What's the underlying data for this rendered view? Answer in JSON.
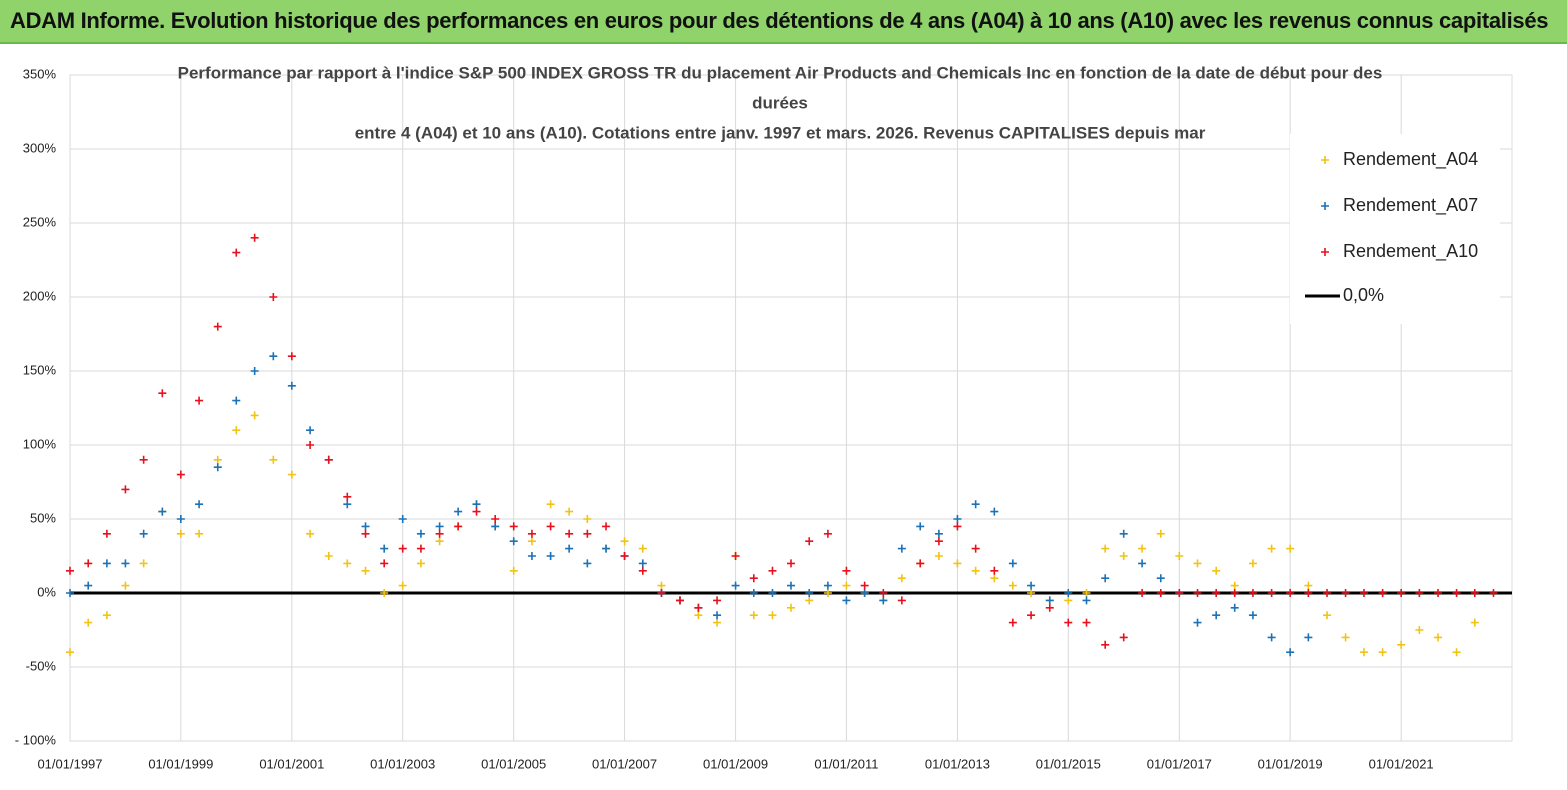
{
  "header": {
    "title": "ADAM Informe. Evolution historique des performances en euros pour des détentions de 4 ans (A04) à 10 ans (A10) avec les revenus connus capitalisés"
  },
  "chart_data": {
    "type": "scatter",
    "title": [
      "Performance par rapport à l'indice S&P 500 INDEX GROSS TR  du placement Air Products and Chemicals Inc en fonction de la date de début pour des",
      "durées",
      "entre 4 (A04) et 10 ans (A10). Cotations entre janv. 1997 et mars. 2026. Revenus CAPITALISES depuis mar"
    ],
    "x": [
      "1997-01-01",
      "1997-05-01",
      "1997-09-01",
      "1998-01-01",
      "1998-05-01",
      "1998-09-01",
      "1999-01-01",
      "1999-05-01",
      "1999-09-01",
      "2000-01-01",
      "2000-05-01",
      "2000-09-01",
      "2001-01-01",
      "2001-05-01",
      "2001-09-01",
      "2002-01-01",
      "2002-05-01",
      "2002-09-01",
      "2003-01-01",
      "2003-05-01",
      "2003-09-01",
      "2004-01-01",
      "2004-05-01",
      "2004-09-01",
      "2005-01-01",
      "2005-05-01",
      "2005-09-01",
      "2006-01-01",
      "2006-05-01",
      "2006-09-01",
      "2007-01-01",
      "2007-05-01",
      "2007-09-01",
      "2008-01-01",
      "2008-05-01",
      "2008-09-01",
      "2009-01-01",
      "2009-05-01",
      "2009-09-01",
      "2010-01-01",
      "2010-05-01",
      "2010-09-01",
      "2011-01-01",
      "2011-05-01",
      "2011-09-01",
      "2012-01-01",
      "2012-05-01",
      "2012-09-01",
      "2013-01-01",
      "2013-05-01",
      "2013-09-01",
      "2014-01-01",
      "2014-05-01",
      "2014-09-01",
      "2015-01-01",
      "2015-05-01",
      "2015-09-01",
      "2016-01-01",
      "2016-05-01",
      "2016-09-01",
      "2017-01-01",
      "2017-05-01",
      "2017-09-01",
      "2018-01-01",
      "2018-05-01",
      "2018-09-01",
      "2019-01-01",
      "2019-05-01",
      "2019-09-01",
      "2020-01-01",
      "2020-05-01",
      "2020-09-01",
      "2021-01-01",
      "2021-05-01",
      "2021-09-01",
      "2022-01-01",
      "2022-05-01",
      "2022-09-01"
    ],
    "series": [
      {
        "name": "Rendement_A04",
        "color": "#f2c314",
        "values": [
          -40,
          -20,
          -15,
          5,
          20,
          55,
          40,
          40,
          90,
          110,
          120,
          90,
          80,
          40,
          25,
          20,
          15,
          0,
          5,
          20,
          35,
          45,
          60,
          45,
          15,
          35,
          60,
          55,
          50,
          30,
          35,
          30,
          5,
          -5,
          -15,
          -20,
          25,
          -15,
          -15,
          -10,
          -5,
          0,
          5,
          0,
          -5,
          10,
          20,
          25,
          20,
          15,
          10,
          5,
          0,
          -5,
          -5,
          0,
          30,
          25,
          30,
          40,
          25,
          20,
          15,
          5,
          20,
          30,
          30,
          5,
          -15,
          -30,
          -40,
          -40,
          -35,
          -25,
          -30,
          -40,
          -20,
          null
        ]
      },
      {
        "name": "Rendement_A07",
        "color": "#1a72b8",
        "values": [
          0,
          5,
          20,
          20,
          40,
          55,
          50,
          60,
          85,
          130,
          150,
          160,
          140,
          110,
          90,
          60,
          45,
          30,
          50,
          40,
          45,
          55,
          60,
          45,
          35,
          25,
          25,
          30,
          20,
          30,
          25,
          20,
          0,
          -5,
          -10,
          -15,
          5,
          0,
          0,
          5,
          0,
          5,
          -5,
          0,
          -5,
          30,
          45,
          40,
          50,
          60,
          55,
          20,
          5,
          -5,
          0,
          -5,
          10,
          40,
          20,
          10,
          0,
          -20,
          -15,
          -10,
          -15,
          -30,
          -40,
          -30,
          null,
          null,
          null,
          null,
          null,
          null,
          null,
          null,
          null,
          null
        ]
      },
      {
        "name": "Rendement_A10",
        "color": "#e8101c",
        "values": [
          15,
          20,
          40,
          70,
          90,
          135,
          80,
          130,
          180,
          230,
          240,
          200,
          160,
          100,
          90,
          65,
          40,
          20,
          30,
          30,
          40,
          45,
          55,
          50,
          45,
          40,
          45,
          40,
          40,
          45,
          25,
          15,
          0,
          -5,
          -10,
          -5,
          25,
          10,
          15,
          20,
          35,
          40,
          15,
          5,
          0,
          -5,
          20,
          35,
          45,
          30,
          15,
          -20,
          -15,
          -10,
          -20,
          -20,
          -35,
          -30,
          0,
          0,
          0,
          0,
          0,
          0,
          0,
          0,
          0,
          0,
          0,
          0,
          0,
          0,
          0,
          0,
          0,
          0,
          0,
          0
        ]
      }
    ],
    "zero_line": {
      "name": "0,0%",
      "value": 0,
      "color": "#000000"
    },
    "xlim": [
      "1997-01-01",
      "2023-01-01"
    ],
    "xticks": [
      {
        "value": "1997-01-01",
        "label": "01/01/1997"
      },
      {
        "value": "1999-01-01",
        "label": "01/01/1999"
      },
      {
        "value": "2001-01-01",
        "label": "01/01/2001"
      },
      {
        "value": "2003-01-01",
        "label": "01/01/2003"
      },
      {
        "value": "2005-01-01",
        "label": "01/01/2005"
      },
      {
        "value": "2007-01-01",
        "label": "01/01/2007"
      },
      {
        "value": "2009-01-01",
        "label": "01/01/2009"
      },
      {
        "value": "2011-01-01",
        "label": "01/01/2011"
      },
      {
        "value": "2013-01-01",
        "label": "01/01/2013"
      },
      {
        "value": "2015-01-01",
        "label": "01/01/2015"
      },
      {
        "value": "2017-01-01",
        "label": "01/01/2017"
      },
      {
        "value": "2019-01-01",
        "label": "01/01/2019"
      },
      {
        "value": "2021-01-01",
        "label": "01/01/2021"
      }
    ],
    "ylim": [
      -100,
      350
    ],
    "yticks": [
      {
        "value": -100,
        "label": "- 100%"
      },
      {
        "value": -50,
        "label": "-50%"
      },
      {
        "value": 0,
        "label": "0%"
      },
      {
        "value": 50,
        "label": "50%"
      },
      {
        "value": 100,
        "label": "100%"
      },
      {
        "value": 150,
        "label": "150%"
      },
      {
        "value": 200,
        "label": "200%"
      },
      {
        "value": 250,
        "label": "250%"
      },
      {
        "value": 300,
        "label": "300%"
      },
      {
        "value": 350,
        "label": "350%"
      }
    ],
    "grid": true,
    "legend": "upper right"
  }
}
